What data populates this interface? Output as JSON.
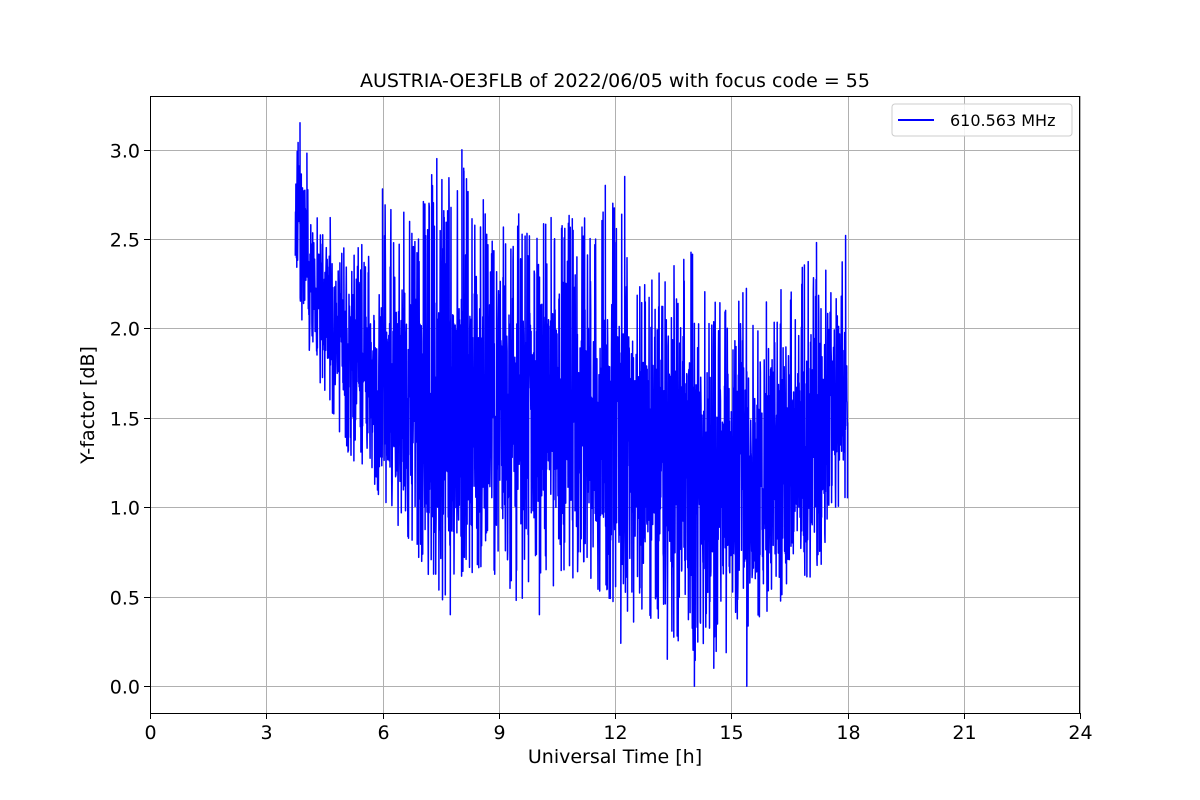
{
  "chart_data": {
    "type": "line",
    "title": "AUSTRIA-OE3FLB of 2022/06/05 with focus code = 55",
    "xlabel": "Universal Time [h]",
    "ylabel": "Y-factor [dB]",
    "xlim": [
      0,
      24
    ],
    "ylim": [
      -0.15,
      3.3
    ],
    "xticks": [
      0,
      3,
      6,
      9,
      12,
      15,
      18,
      21,
      24
    ],
    "xtick_labels": [
      "0",
      "3",
      "6",
      "9",
      "12",
      "15",
      "18",
      "21",
      "24"
    ],
    "yticks": [
      0.0,
      0.5,
      1.0,
      1.5,
      2.0,
      2.5,
      3.0
    ],
    "ytick_labels": [
      "0.0",
      "0.5",
      "1.0",
      "1.5",
      "2.0",
      "2.5",
      "3.0"
    ],
    "grid": true,
    "legend_position": "top-right",
    "series": [
      {
        "name": "610.563 MHz",
        "color": "#0000ff",
        "x": [
          3.75,
          3.85,
          3.95,
          4.05,
          4.2,
          4.4,
          4.6,
          4.8,
          5.0,
          5.25,
          5.5,
          5.75,
          6.0,
          6.25,
          6.5,
          7.0,
          7.5,
          8.0,
          8.5,
          9.0,
          9.5,
          10.0,
          10.5,
          11.0,
          11.5,
          12.0,
          12.5,
          13.0,
          13.5,
          14.0,
          14.5,
          15.0,
          15.5,
          16.0,
          16.5,
          17.0,
          17.5,
          18.0
        ],
        "y": [
          2.65,
          2.7,
          2.55,
          2.4,
          2.25,
          2.15,
          2.1,
          2.0,
          1.95,
          1.85,
          1.8,
          1.75,
          1.7,
          1.65,
          1.6,
          1.55,
          1.55,
          1.5,
          1.5,
          1.5,
          1.5,
          1.5,
          1.5,
          1.45,
          1.45,
          1.4,
          1.35,
          1.3,
          1.25,
          1.2,
          1.15,
          1.15,
          1.15,
          1.15,
          1.2,
          1.3,
          1.45,
          1.65
        ],
        "range_low": [
          2.3,
          2.15,
          2.0,
          1.85,
          1.75,
          1.65,
          1.55,
          1.45,
          1.35,
          1.25,
          1.2,
          1.1,
          1.05,
          0.95,
          0.8,
          0.7,
          0.45,
          0.6,
          0.65,
          0.6,
          0.45,
          0.6,
          0.55,
          0.6,
          0.55,
          0.45,
          0.35,
          0.35,
          0.25,
          0.15,
          0.1,
          0.2,
          0.35,
          0.4,
          0.45,
          0.55,
          0.75,
          1.05
        ],
        "range_high": [
          2.95,
          3.15,
          3.0,
          2.8,
          2.65,
          2.65,
          2.5,
          2.4,
          2.45,
          2.4,
          2.55,
          2.5,
          2.75,
          2.7,
          2.6,
          2.75,
          3.0,
          2.95,
          2.75,
          2.6,
          2.65,
          2.55,
          2.7,
          2.65,
          2.75,
          2.8,
          2.35,
          2.3,
          2.35,
          2.5,
          2.2,
          2.2,
          2.25,
          2.2,
          2.25,
          2.45,
          2.5,
          2.45
        ],
        "spikes": [
          {
            "x": 3.87,
            "y": 3.15
          },
          {
            "x": 4.05,
            "y": 2.98
          },
          {
            "x": 4.65,
            "y": 2.62
          },
          {
            "x": 5.0,
            "y": 2.45
          },
          {
            "x": 6.0,
            "y": 2.78
          },
          {
            "x": 6.55,
            "y": 2.65
          },
          {
            "x": 7.2,
            "y": 2.7
          },
          {
            "x": 7.4,
            "y": 2.95
          },
          {
            "x": 7.75,
            "y": 0.4
          },
          {
            "x": 8.05,
            "y": 3.0
          },
          {
            "x": 8.1,
            "y": 2.88
          },
          {
            "x": 8.45,
            "y": 0.68
          },
          {
            "x": 8.6,
            "y": 2.72
          },
          {
            "x": 10.05,
            "y": 0.4
          },
          {
            "x": 10.35,
            "y": 2.62
          },
          {
            "x": 11.5,
            "y": 2.5
          },
          {
            "x": 11.75,
            "y": 2.8
          },
          {
            "x": 12.25,
            "y": 2.85
          },
          {
            "x": 12.15,
            "y": 0.24
          },
          {
            "x": 13.35,
            "y": 0.15
          },
          {
            "x": 14.05,
            "y": 0.0
          },
          {
            "x": 14.55,
            "y": 0.1
          },
          {
            "x": 15.4,
            "y": 0.0
          },
          {
            "x": 15.3,
            "y": 2.2
          },
          {
            "x": 17.2,
            "y": 2.48
          },
          {
            "x": 17.95,
            "y": 2.52
          },
          {
            "x": 18.0,
            "y": 1.05
          }
        ]
      }
    ]
  }
}
